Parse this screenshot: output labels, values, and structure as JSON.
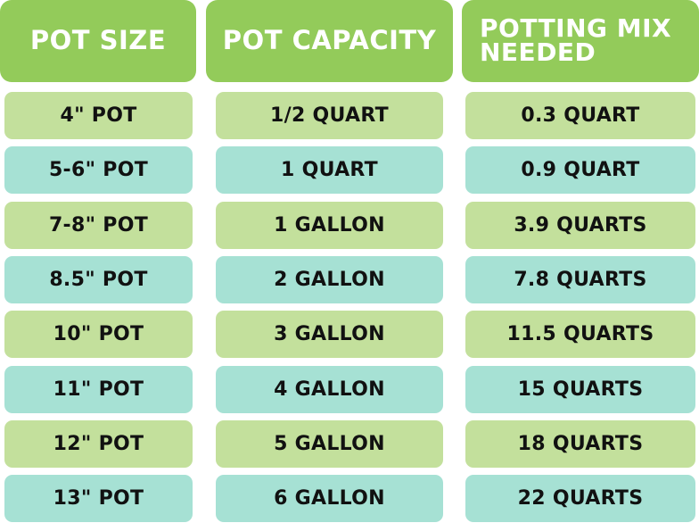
{
  "headers": [
    "POT SIZE",
    "POT CAPACITY",
    "POTTING MIX NEEDED"
  ],
  "colors": {
    "header": "#93cb5a",
    "row_green": "#c3e09c",
    "row_teal": "#a6e1d4",
    "header_text": "#ffffff",
    "cell_text": "#111111"
  },
  "rows": [
    [
      "4\" POT",
      "1/2 QUART",
      "0.3 QUART"
    ],
    [
      "5-6\" POT",
      "1 QUART",
      "0.9 QUART"
    ],
    [
      "7-8\" POT",
      "1 GALLON",
      "3.9 QUARTS"
    ],
    [
      "8.5\" POT",
      "2 GALLON",
      "7.8 QUARTS"
    ],
    [
      "10\" POT",
      "3 GALLON",
      "11.5 QUARTS"
    ],
    [
      "11\" POT",
      "4 GALLON",
      "15 QUARTS"
    ],
    [
      "12\" POT",
      "5 GALLON",
      "18 QUARTS"
    ],
    [
      "13\" POT",
      "6 GALLON",
      "22 QUARTS"
    ]
  ]
}
